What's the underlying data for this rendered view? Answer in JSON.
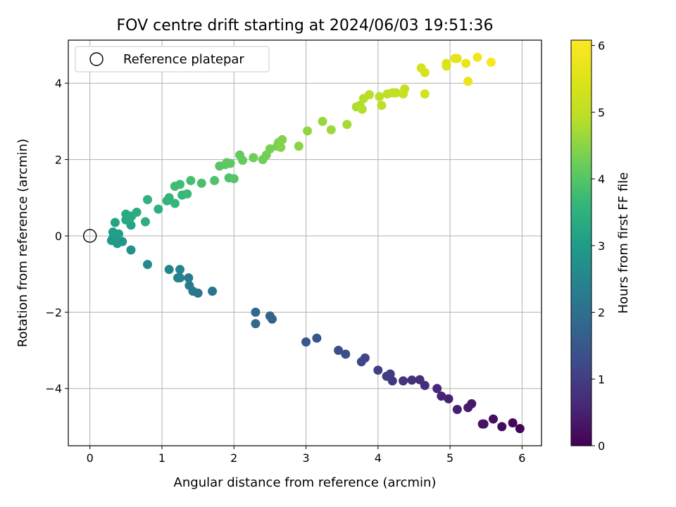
{
  "chart_data": {
    "type": "scatter",
    "title": "FOV centre drift starting at 2024/06/03 19:51:36",
    "xlabel": "Angular distance from reference (arcmin)",
    "ylabel": "Rotation from reference (arcmin)",
    "xlim": [
      -0.3,
      6.27
    ],
    "ylim": [
      -5.5,
      5.13
    ],
    "xticks": [
      0,
      1,
      2,
      3,
      4,
      5,
      6
    ],
    "yticks": [
      -4,
      -2,
      0,
      2,
      4
    ],
    "grid": true,
    "legend": {
      "placement": "top-left",
      "entries": [
        {
          "label": "Reference platepar",
          "marker": "open-circle"
        }
      ]
    },
    "reference_point": {
      "x": 0,
      "y": 0
    },
    "colorbar": {
      "label": "Hours from first FF file",
      "colormap": "viridis",
      "range": [
        0,
        6.08
      ],
      "ticks": [
        0,
        1,
        2,
        3,
        4,
        5,
        6
      ]
    },
    "points": [
      {
        "x": 5.97,
        "y": -5.05,
        "c": 0.05
      },
      {
        "x": 5.87,
        "y": -4.9,
        "c": 0.1
      },
      {
        "x": 5.72,
        "y": -5.0,
        "c": 0.15
      },
      {
        "x": 5.6,
        "y": -4.8,
        "c": 0.2
      },
      {
        "x": 5.47,
        "y": -4.93,
        "c": 0.25
      },
      {
        "x": 5.45,
        "y": -4.93,
        "c": 0.27
      },
      {
        "x": 5.3,
        "y": -4.4,
        "c": 0.35
      },
      {
        "x": 5.25,
        "y": -4.5,
        "c": 0.4
      },
      {
        "x": 5.1,
        "y": -4.55,
        "c": 0.45
      },
      {
        "x": 4.98,
        "y": -4.27,
        "c": 0.5
      },
      {
        "x": 4.88,
        "y": -4.2,
        "c": 0.55
      },
      {
        "x": 4.82,
        "y": -4.0,
        "c": 0.6
      },
      {
        "x": 4.65,
        "y": -3.92,
        "c": 0.7
      },
      {
        "x": 4.58,
        "y": -3.77,
        "c": 0.75
      },
      {
        "x": 4.47,
        "y": -3.78,
        "c": 0.8
      },
      {
        "x": 4.35,
        "y": -3.8,
        "c": 0.85
      },
      {
        "x": 4.2,
        "y": -3.8,
        "c": 0.9
      },
      {
        "x": 4.17,
        "y": -3.62,
        "c": 0.95
      },
      {
        "x": 4.12,
        "y": -3.68,
        "c": 1.0
      },
      {
        "x": 4.0,
        "y": -3.52,
        "c": 1.05
      },
      {
        "x": 3.82,
        "y": -3.2,
        "c": 1.15
      },
      {
        "x": 3.77,
        "y": -3.3,
        "c": 1.2
      },
      {
        "x": 3.55,
        "y": -3.1,
        "c": 1.3
      },
      {
        "x": 3.45,
        "y": -3.0,
        "c": 1.35
      },
      {
        "x": 3.15,
        "y": -2.68,
        "c": 1.45
      },
      {
        "x": 3.0,
        "y": -2.78,
        "c": 1.5
      },
      {
        "x": 2.53,
        "y": -2.18,
        "c": 1.7
      },
      {
        "x": 2.5,
        "y": -2.1,
        "c": 1.75
      },
      {
        "x": 2.3,
        "y": -2.0,
        "c": 1.8
      },
      {
        "x": 2.3,
        "y": -2.3,
        "c": 1.85
      },
      {
        "x": 1.7,
        "y": -1.45,
        "c": 2.05
      },
      {
        "x": 1.5,
        "y": -1.5,
        "c": 2.15
      },
      {
        "x": 1.43,
        "y": -1.45,
        "c": 2.2
      },
      {
        "x": 1.38,
        "y": -1.3,
        "c": 2.25
      },
      {
        "x": 1.37,
        "y": -1.1,
        "c": 2.3
      },
      {
        "x": 1.25,
        "y": -1.1,
        "c": 2.35
      },
      {
        "x": 1.22,
        "y": -1.1,
        "c": 2.4
      },
      {
        "x": 1.25,
        "y": -0.88,
        "c": 2.45
      },
      {
        "x": 1.1,
        "y": -0.88,
        "c": 2.5
      },
      {
        "x": 0.8,
        "y": -0.75,
        "c": 2.6
      },
      {
        "x": 0.57,
        "y": -0.37,
        "c": 2.75
      },
      {
        "x": 0.45,
        "y": -0.15,
        "c": 2.85
      },
      {
        "x": 0.38,
        "y": -0.2,
        "c": 2.9
      },
      {
        "x": 0.32,
        "y": -0.05,
        "c": 2.95
      },
      {
        "x": 0.3,
        "y": -0.12,
        "c": 3.0
      },
      {
        "x": 0.37,
        "y": 0.02,
        "c": 3.02
      },
      {
        "x": 0.32,
        "y": 0.1,
        "c": 3.05
      },
      {
        "x": 0.4,
        "y": 0.05,
        "c": 3.08
      },
      {
        "x": 0.35,
        "y": 0.35,
        "c": 3.15
      },
      {
        "x": 0.57,
        "y": 0.28,
        "c": 3.2
      },
      {
        "x": 0.5,
        "y": 0.42,
        "c": 3.25
      },
      {
        "x": 0.55,
        "y": 0.45,
        "c": 3.28
      },
      {
        "x": 0.58,
        "y": 0.52,
        "c": 3.3
      },
      {
        "x": 0.5,
        "y": 0.57,
        "c": 3.33
      },
      {
        "x": 0.65,
        "y": 0.62,
        "c": 3.38
      },
      {
        "x": 0.77,
        "y": 0.37,
        "c": 3.42
      },
      {
        "x": 0.95,
        "y": 0.7,
        "c": 3.45
      },
      {
        "x": 0.8,
        "y": 0.95,
        "c": 3.5
      },
      {
        "x": 1.07,
        "y": 0.92,
        "c": 3.55
      },
      {
        "x": 1.1,
        "y": 1.0,
        "c": 3.58
      },
      {
        "x": 1.18,
        "y": 0.85,
        "c": 3.62
      },
      {
        "x": 1.28,
        "y": 1.07,
        "c": 3.68
      },
      {
        "x": 1.35,
        "y": 1.1,
        "c": 3.7
      },
      {
        "x": 1.18,
        "y": 1.3,
        "c": 3.75
      },
      {
        "x": 1.25,
        "y": 1.35,
        "c": 3.78
      },
      {
        "x": 1.4,
        "y": 1.45,
        "c": 3.82
      },
      {
        "x": 1.55,
        "y": 1.38,
        "c": 3.86
      },
      {
        "x": 1.73,
        "y": 1.45,
        "c": 3.9
      },
      {
        "x": 1.93,
        "y": 1.52,
        "c": 3.95
      },
      {
        "x": 2.0,
        "y": 1.5,
        "c": 3.98
      },
      {
        "x": 1.8,
        "y": 1.83,
        "c": 4.02
      },
      {
        "x": 1.88,
        "y": 1.87,
        "c": 4.05
      },
      {
        "x": 1.95,
        "y": 1.9,
        "c": 4.08
      },
      {
        "x": 1.9,
        "y": 1.92,
        "c": 4.1
      },
      {
        "x": 2.08,
        "y": 2.12,
        "c": 4.15
      },
      {
        "x": 2.12,
        "y": 1.98,
        "c": 4.18
      },
      {
        "x": 2.27,
        "y": 2.05,
        "c": 4.22
      },
      {
        "x": 2.4,
        "y": 2.0,
        "c": 4.25
      },
      {
        "x": 2.45,
        "y": 2.12,
        "c": 4.28
      },
      {
        "x": 2.5,
        "y": 2.28,
        "c": 4.32
      },
      {
        "x": 2.6,
        "y": 2.35,
        "c": 4.35
      },
      {
        "x": 2.62,
        "y": 2.45,
        "c": 4.38
      },
      {
        "x": 2.67,
        "y": 2.52,
        "c": 4.42
      },
      {
        "x": 2.65,
        "y": 2.32,
        "c": 4.45
      },
      {
        "x": 2.9,
        "y": 2.35,
        "c": 4.5
      },
      {
        "x": 3.02,
        "y": 2.75,
        "c": 4.55
      },
      {
        "x": 3.23,
        "y": 3.0,
        "c": 4.6
      },
      {
        "x": 3.35,
        "y": 2.78,
        "c": 4.65
      },
      {
        "x": 3.57,
        "y": 2.92,
        "c": 4.72
      },
      {
        "x": 3.7,
        "y": 3.38,
        "c": 4.78
      },
      {
        "x": 3.75,
        "y": 3.42,
        "c": 4.82
      },
      {
        "x": 3.78,
        "y": 3.32,
        "c": 4.85
      },
      {
        "x": 3.8,
        "y": 3.6,
        "c": 4.88
      },
      {
        "x": 3.88,
        "y": 3.7,
        "c": 4.92
      },
      {
        "x": 4.02,
        "y": 3.65,
        "c": 4.96
      },
      {
        "x": 4.05,
        "y": 3.42,
        "c": 4.99
      },
      {
        "x": 4.13,
        "y": 3.72,
        "c": 5.02
      },
      {
        "x": 4.2,
        "y": 3.75,
        "c": 5.06
      },
      {
        "x": 4.25,
        "y": 3.75,
        "c": 5.09
      },
      {
        "x": 4.35,
        "y": 3.72,
        "c": 5.12
      },
      {
        "x": 4.37,
        "y": 3.85,
        "c": 5.15
      },
      {
        "x": 4.6,
        "y": 4.4,
        "c": 5.3
      },
      {
        "x": 4.65,
        "y": 4.28,
        "c": 5.35
      },
      {
        "x": 4.65,
        "y": 3.72,
        "c": 5.33
      },
      {
        "x": 4.95,
        "y": 4.45,
        "c": 5.45
      },
      {
        "x": 4.95,
        "y": 4.52,
        "c": 5.5
      },
      {
        "x": 5.07,
        "y": 4.65,
        "c": 5.6
      },
      {
        "x": 5.1,
        "y": 4.65,
        "c": 5.65
      },
      {
        "x": 5.22,
        "y": 4.52,
        "c": 5.7
      },
      {
        "x": 5.25,
        "y": 4.05,
        "c": 5.75
      },
      {
        "x": 5.38,
        "y": 4.68,
        "c": 5.85
      },
      {
        "x": 5.57,
        "y": 4.55,
        "c": 6.0
      }
    ]
  }
}
